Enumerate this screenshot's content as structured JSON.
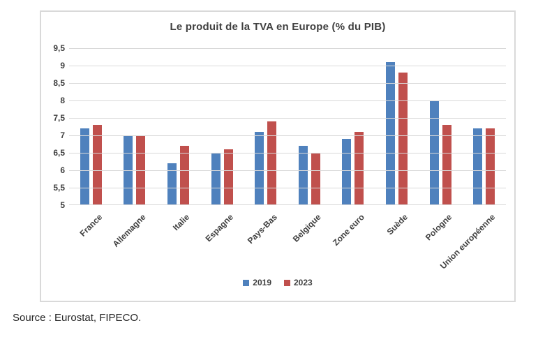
{
  "source_note": "Source : Eurostat, FIPECO.",
  "chart_data": {
    "type": "bar",
    "title": "Le produit de la TVA en Europe (% du PIB)",
    "categories": [
      "France",
      "Allemagne",
      "Italie",
      "Espagne",
      "Pays-Bas",
      "Belgique",
      "Zone euro",
      "Suède",
      "Pologne",
      "Union européenne"
    ],
    "series": [
      {
        "name": "2019",
        "color": "#4F81BD",
        "values": [
          7.2,
          7.0,
          6.2,
          6.5,
          7.1,
          6.7,
          6.9,
          9.1,
          8.0,
          7.2
        ]
      },
      {
        "name": "2023",
        "color": "#C0504D",
        "values": [
          7.3,
          7.0,
          6.7,
          6.6,
          7.4,
          6.5,
          7.1,
          8.8,
          7.3,
          7.2
        ]
      }
    ],
    "ylim": [
      5,
      9.5
    ],
    "y_step": 0.5,
    "y_tick_labels": [
      "5",
      "5,5",
      "6",
      "6,5",
      "7",
      "7,5",
      "8",
      "8,5",
      "9",
      "9,5"
    ],
    "grid": true,
    "legend_position": "bottom",
    "colors": {
      "text": "#404040",
      "grid": "#d9d9d9",
      "frame_border": "#d9d9d9"
    }
  }
}
